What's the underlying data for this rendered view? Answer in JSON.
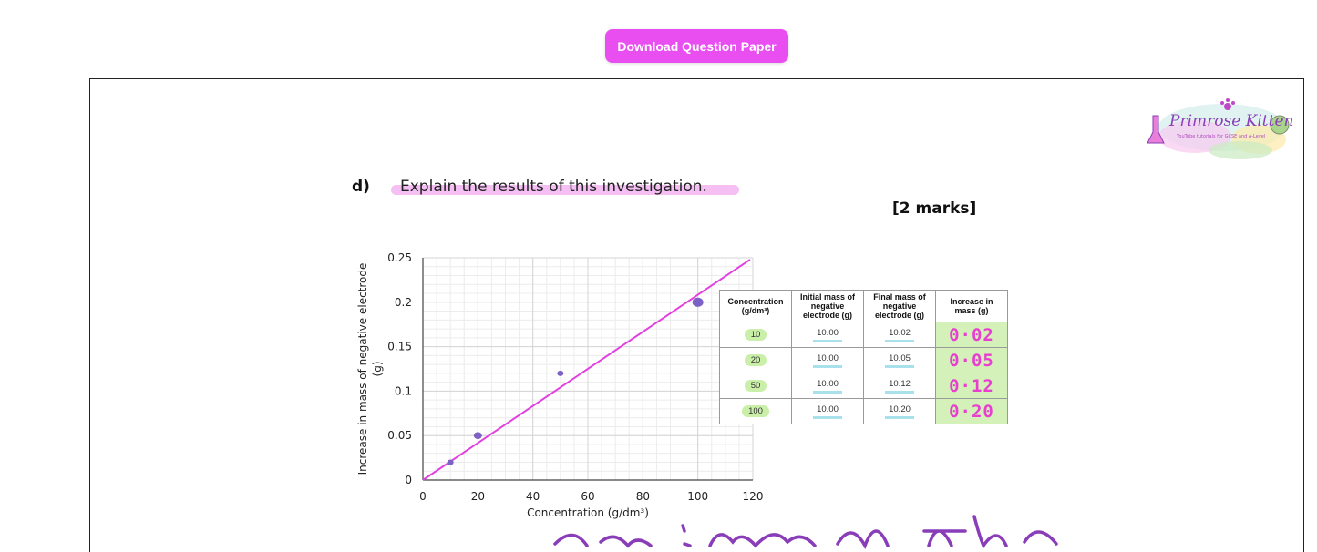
{
  "toolbar": {
    "download_label": "Download Question Paper"
  },
  "logo": {
    "text": "Primrose Kitten",
    "subtext": "YouTube tutorials for GCSE and A-Level"
  },
  "question": {
    "number": "d)",
    "text": "Explain the results of this investigation.",
    "marks": "[2 marks]"
  },
  "table": {
    "headers": [
      "Concentration (g/dm³)",
      "Initial mass of negative electrode (g)",
      "Final mass of negative electrode (g)",
      "Increase in mass (g)"
    ],
    "rows": [
      {
        "concentration": "10",
        "initial": "10.00",
        "final": "10.02",
        "increase": "0·02"
      },
      {
        "concentration": "20",
        "initial": "10.00",
        "final": "10.05",
        "increase": "0·05"
      },
      {
        "concentration": "50",
        "initial": "10.00",
        "final": "10.12",
        "increase": "0·12"
      },
      {
        "concentration": "100",
        "initial": "10.00",
        "final": "10.20",
        "increase": "0·20"
      }
    ]
  },
  "chart_data": {
    "type": "scatter",
    "xlabel": "Concentration (g/dm³)",
    "ylabel": "Increase in mass of negative electrode (g)",
    "xlim": [
      0,
      120
    ],
    "ylim": [
      0,
      0.25
    ],
    "x_ticks": [
      "0",
      "20",
      "40",
      "60",
      "80",
      "100",
      "120"
    ],
    "y_ticks": [
      "0",
      "0.05",
      "0.1",
      "0.15",
      "0.2",
      "0.25"
    ],
    "grid": true,
    "series": [
      {
        "x": [
          10,
          20,
          50,
          100
        ],
        "y": [
          0.02,
          0.05,
          0.12,
          0.2
        ],
        "color": "#7b62c4"
      }
    ],
    "annotations": [
      {
        "type": "line",
        "from": [
          0,
          0
        ],
        "to": [
          119,
          0.248
        ],
        "color": "#e23fe0"
      }
    ]
  },
  "colors": {
    "accent": "#e94ef0",
    "handwriting": "#e83fd0",
    "points": "#7b62c4"
  }
}
